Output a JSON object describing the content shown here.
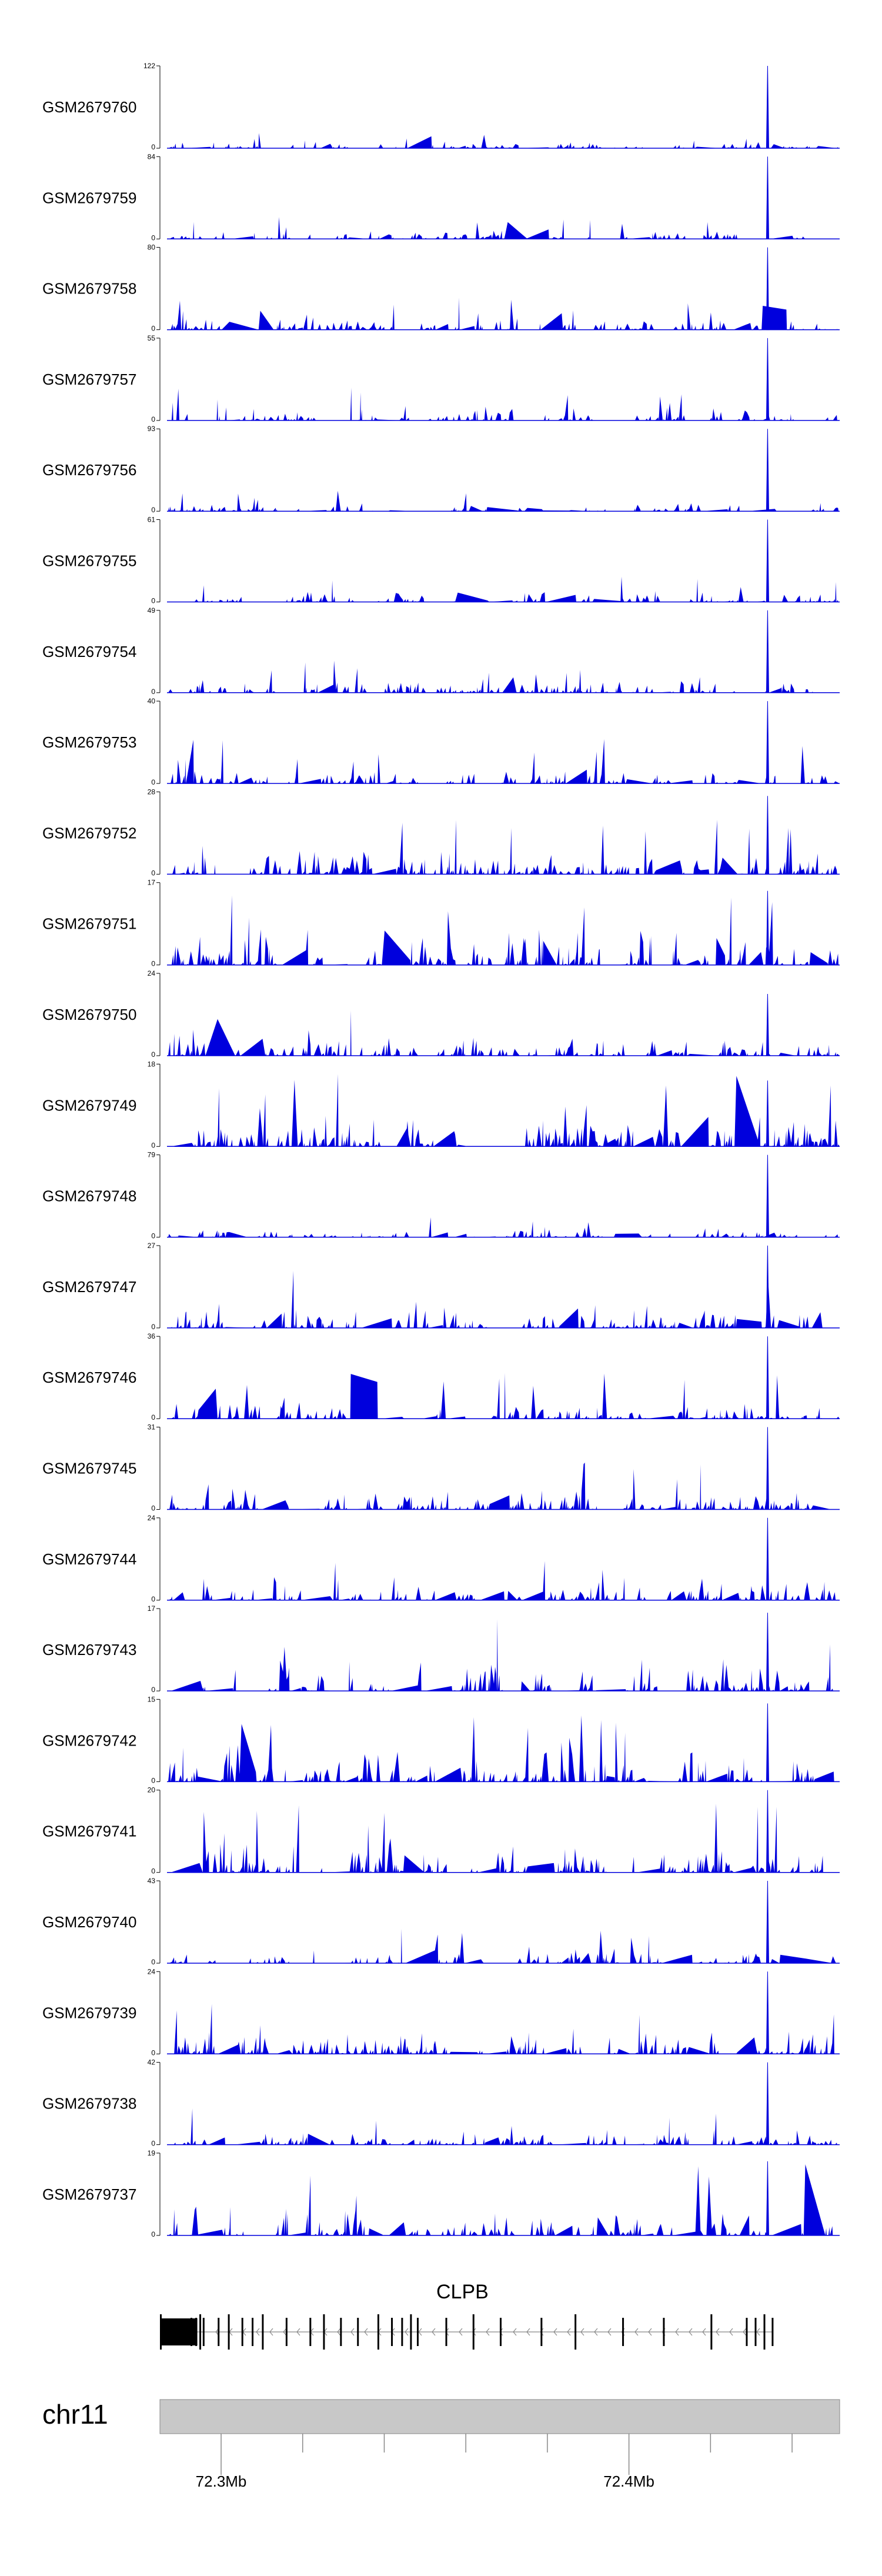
{
  "chart_data": {
    "type": "area",
    "color": "#0000dd",
    "tracks": [
      {
        "name": "GSM2679760",
        "ymax": "122",
        "ymin": "0",
        "peak": 1.0,
        "base": 0.1,
        "density": 0.55,
        "seed": 11
      },
      {
        "name": "GSM2679759",
        "ymax": "84",
        "ymin": "0",
        "peak": 1.0,
        "base": 0.12,
        "density": 0.55,
        "seed": 23
      },
      {
        "name": "GSM2679758",
        "ymax": "80",
        "ymin": "0",
        "peak": 1.0,
        "base": 0.17,
        "density": 0.55,
        "seed": 37
      },
      {
        "name": "GSM2679757",
        "ymax": "55",
        "ymin": "0",
        "peak": 1.0,
        "base": 0.18,
        "density": 0.6,
        "seed": 41
      },
      {
        "name": "GSM2679756",
        "ymax": "93",
        "ymin": "0",
        "peak": 1.0,
        "base": 0.11,
        "density": 0.55,
        "seed": 53
      },
      {
        "name": "GSM2679755",
        "ymax": "61",
        "ymin": "0",
        "peak": 1.0,
        "base": 0.16,
        "density": 0.6,
        "seed": 67
      },
      {
        "name": "GSM2679754",
        "ymax": "49",
        "ymin": "0",
        "peak": 1.0,
        "base": 0.2,
        "density": 0.6,
        "seed": 71
      },
      {
        "name": "GSM2679753",
        "ymax": "40",
        "ymin": "0",
        "peak": 1.0,
        "base": 0.24,
        "density": 0.6,
        "seed": 83
      },
      {
        "name": "GSM2679752",
        "ymax": "28",
        "ymin": "0",
        "peak": 0.95,
        "base": 0.3,
        "density": 0.65,
        "seed": 97
      },
      {
        "name": "GSM2679751",
        "ymax": "17",
        "ymin": "0",
        "peak": 0.9,
        "base": 0.5,
        "density": 0.7,
        "seed": 101
      },
      {
        "name": "GSM2679750",
        "ymax": "24",
        "ymin": "0",
        "peak": 0.75,
        "base": 0.28,
        "density": 0.65,
        "seed": 113
      },
      {
        "name": "GSM2679749",
        "ymax": "18",
        "ymin": "0",
        "peak": 0.8,
        "base": 0.38,
        "density": 0.7,
        "seed": 127
      },
      {
        "name": "GSM2679748",
        "ymax": "79",
        "ymin": "0",
        "peak": 1.0,
        "base": 0.11,
        "density": 0.55,
        "seed": 131
      },
      {
        "name": "GSM2679747",
        "ymax": "27",
        "ymin": "0",
        "peak": 1.0,
        "base": 0.3,
        "density": 0.65,
        "seed": 149
      },
      {
        "name": "GSM2679746",
        "ymax": "36",
        "ymin": "0",
        "peak": 1.0,
        "base": 0.24,
        "density": 0.65,
        "seed": 151
      },
      {
        "name": "GSM2679745",
        "ymax": "31",
        "ymin": "0",
        "peak": 1.0,
        "base": 0.25,
        "density": 0.65,
        "seed": 163
      },
      {
        "name": "GSM2679744",
        "ymax": "24",
        "ymin": "0",
        "peak": 1.0,
        "base": 0.3,
        "density": 0.65,
        "seed": 173
      },
      {
        "name": "GSM2679743",
        "ymax": "17",
        "ymin": "0",
        "peak": 0.95,
        "base": 0.45,
        "density": 0.7,
        "seed": 181
      },
      {
        "name": "GSM2679742",
        "ymax": "15",
        "ymin": "0",
        "peak": 0.95,
        "base": 0.45,
        "density": 0.7,
        "seed": 191
      },
      {
        "name": "GSM2679741",
        "ymax": "20",
        "ymin": "0",
        "peak": 1.0,
        "base": 0.36,
        "density": 0.7,
        "seed": 193
      },
      {
        "name": "GSM2679740",
        "ymax": "43",
        "ymin": "0",
        "peak": 1.0,
        "base": 0.18,
        "density": 0.6,
        "seed": 197
      },
      {
        "name": "GSM2679739",
        "ymax": "24",
        "ymin": "0",
        "peak": 1.0,
        "base": 0.32,
        "density": 0.65,
        "seed": 211
      },
      {
        "name": "GSM2679738",
        "ymax": "42",
        "ymin": "0",
        "peak": 1.0,
        "base": 0.2,
        "density": 0.6,
        "seed": 223
      },
      {
        "name": "GSM2679737",
        "ymax": "19",
        "ymin": "0",
        "peak": 0.9,
        "base": 0.4,
        "density": 0.7,
        "seed": 227
      }
    ],
    "gene": {
      "name": "CLPB",
      "strand": "-",
      "exons": [
        0.0,
        0.045,
        0.052,
        0.058,
        0.063,
        0.085,
        0.1,
        0.12,
        0.135,
        0.15,
        0.185,
        0.22,
        0.24,
        0.265,
        0.29,
        0.32,
        0.34,
        0.355,
        0.368,
        0.378,
        0.42,
        0.46,
        0.5,
        0.56,
        0.61,
        0.68,
        0.74,
        0.81,
        0.862,
        0.875,
        0.888,
        0.9
      ]
    },
    "chromosome": "chr11",
    "axis": {
      "ticks": [
        {
          "pos": 0.09,
          "label": "72.3Mb"
        },
        {
          "pos": 0.21,
          "label": ""
        },
        {
          "pos": 0.33,
          "label": ""
        },
        {
          "pos": 0.45,
          "label": ""
        },
        {
          "pos": 0.57,
          "label": ""
        },
        {
          "pos": 0.69,
          "label": "72.4Mb"
        },
        {
          "pos": 0.81,
          "label": ""
        },
        {
          "pos": 0.93,
          "label": ""
        }
      ]
    }
  }
}
